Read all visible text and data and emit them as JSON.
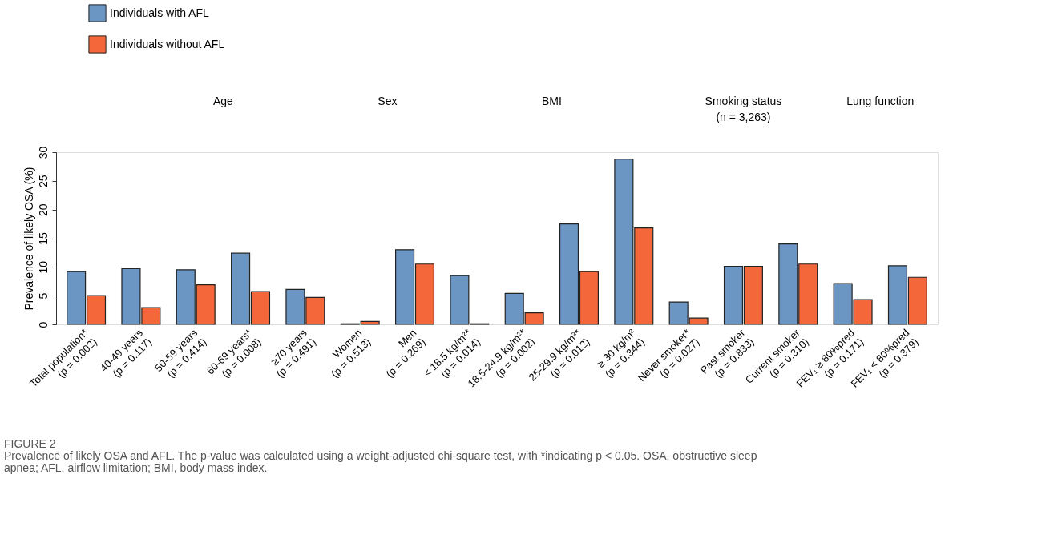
{
  "chart_data": {
    "type": "bar",
    "ylabel": "Prevalence of likely OSA (%)",
    "categories": [
      "Total population*\n(p = 0.002)",
      "40-49 years\n(p = 0.117)",
      "50-59 years\n(p = 0.414)",
      "60-69 years*\n(p = 0.008)",
      "≥70 years\n(p = 0.491)",
      "Women\n(p = 0.513)",
      "Men\n(p = 0.269)",
      "< 18.5 kg/m²*\n(p = 0.014)",
      "18.5-24.9 kg/m²*\n(p = 0.002)",
      "25-29.9 kg/m²*\n(p = 0.012)",
      "≥ 30 kg/m²\n(p = 0.344)",
      "Never smoker*\n(p = 0.027)",
      "Past smoker\n(p = 0.833)",
      "Current smoker\n(p = 0.310)",
      "FEV₁ ≥ 80%pred\n(p = 0.171)",
      "FEV₁ < 80%pred\n(p = 0.379)"
    ],
    "series": [
      {
        "name": "Individuals with AFL",
        "color": "#6b96c3",
        "values": [
          9.2,
          9.7,
          9.5,
          12.4,
          6.1,
          0.1,
          13.0,
          8.5,
          5.4,
          17.5,
          28.8,
          3.9,
          10.1,
          14.0,
          7.1,
          10.2
        ]
      },
      {
        "name": "Individuals without AFL",
        "color": "#f4673b",
        "values": [
          5.0,
          2.9,
          6.9,
          5.7,
          4.7,
          0.5,
          10.5,
          0.1,
          2.0,
          9.2,
          16.8,
          1.1,
          10.1,
          10.5,
          4.3,
          8.2
        ]
      }
    ],
    "ylim": [
      0,
      30
    ],
    "yticks": [
      0,
      5,
      10,
      15,
      20,
      25,
      30
    ],
    "grid": false,
    "legend": "top left",
    "annotations": [
      "Age",
      "Sex",
      "BMI",
      "Smoking status\n(n = 3,263)",
      "Lung function",
      "FIGURE 2",
      "Prevalence of likely OSA and AFL. The p-value was calculated using a weight-adjusted chi-square test, with *indicating p < 0.05. OSA, obstructive sleep",
      "apnea; AFL, airflow limitation; BMI, body mass index."
    ]
  }
}
